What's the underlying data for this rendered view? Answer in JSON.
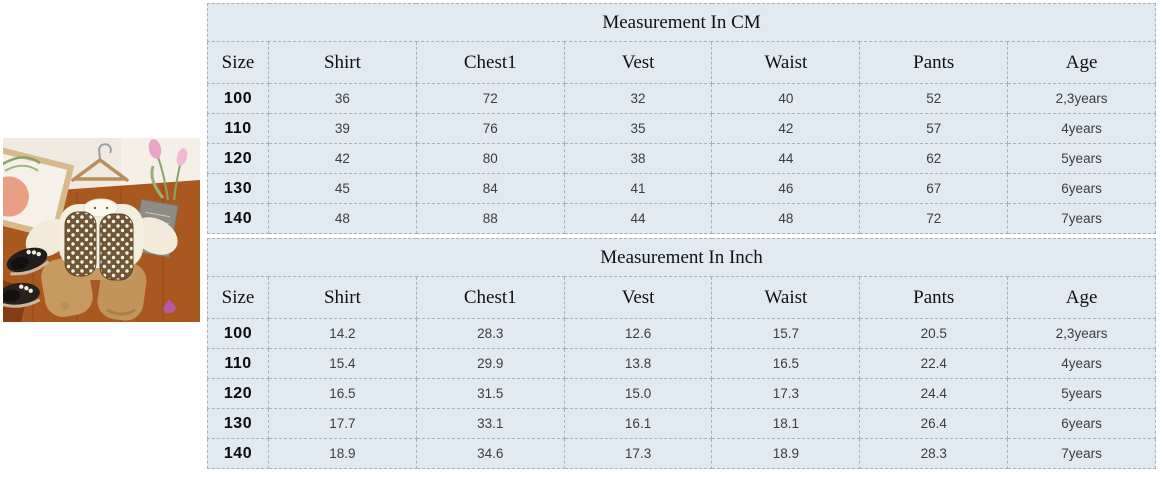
{
  "colors": {
    "table_bg": "#e1e9f1",
    "table_border": "#a9b2ba",
    "title_text": "#111111",
    "value_text": "#3d3d3d"
  },
  "chart_data": [
    {
      "type": "table",
      "title": "Measurement In CM",
      "columns": [
        "Size",
        "Shirt",
        "Chest1",
        "Vest",
        "Waist",
        "Pants",
        "Age"
      ],
      "rows": [
        [
          "100",
          "36",
          "72",
          "32",
          "40",
          "52",
          "2,3years"
        ],
        [
          "110",
          "39",
          "76",
          "35",
          "42",
          "57",
          "4years"
        ],
        [
          "120",
          "42",
          "80",
          "38",
          "44",
          "62",
          "5years"
        ],
        [
          "130",
          "45",
          "84",
          "41",
          "46",
          "67",
          "6years"
        ],
        [
          "140",
          "48",
          "88",
          "44",
          "48",
          "72",
          "7years"
        ]
      ]
    },
    {
      "type": "table",
      "title": "Measurement In Inch",
      "columns": [
        "Size",
        "Shirt",
        "Chest1",
        "Vest",
        "Waist",
        "Pants",
        "Age"
      ],
      "rows": [
        [
          "100",
          "14.2",
          "28.3",
          "12.6",
          "15.7",
          "20.5",
          "2,3years"
        ],
        [
          "110",
          "15.4",
          "29.9",
          "13.8",
          "16.5",
          "22.4",
          "4years"
        ],
        [
          "120",
          "16.5",
          "31.5",
          "15.0",
          "17.3",
          "24.4",
          "5years"
        ],
        [
          "130",
          "17.7",
          "33.1",
          "16.1",
          "18.1",
          "26.4",
          "6years"
        ],
        [
          "140",
          "18.9",
          "34.6",
          "17.3",
          "18.9",
          "28.3",
          "7years"
        ]
      ]
    }
  ]
}
